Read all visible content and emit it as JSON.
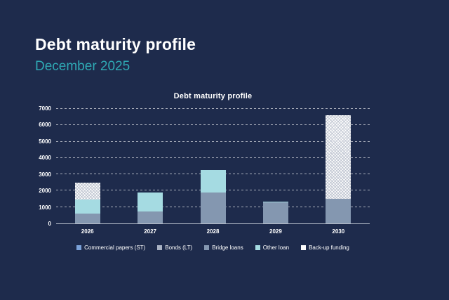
{
  "page": {
    "title": "Debt maturity profile",
    "subtitle": "December 2025"
  },
  "colors": {
    "background": "#1e2b4c",
    "title_text": "#ffffff",
    "subtitle_accent": "#2fa9b4",
    "axis_line": "#b9c0cc",
    "gridline": "rgba(255,255,255,0.62)"
  },
  "chart_data": {
    "type": "bar",
    "variant": "stacked",
    "title": "Debt maturity profile",
    "categories": [
      "2026",
      "2027",
      "2028",
      "2029",
      "2030"
    ],
    "series": [
      {
        "name": "Commercial papers (ST)",
        "color": "#7ba2d9",
        "hatch": false,
        "values": [
          0,
          0,
          0,
          0,
          0
        ]
      },
      {
        "name": "Bonds (LT)",
        "color": "#a9b2c4",
        "hatch": false,
        "values": [
          0,
          0,
          0,
          0,
          0
        ]
      },
      {
        "name": "Bridge loans",
        "color": "#8497b0",
        "hatch": false,
        "values": [
          600,
          750,
          1900,
          1300,
          1500
        ]
      },
      {
        "name": "Other loan",
        "color": "#a5dbe2",
        "hatch": false,
        "values": [
          850,
          1150,
          1350,
          50,
          0
        ]
      },
      {
        "name": "Back-up funding",
        "color": "#fdfdfd",
        "hatch": true,
        "values": [
          1050,
          0,
          0,
          0,
          5100
        ]
      }
    ],
    "totals": [
      2500,
      1900,
      3250,
      1350,
      6600
    ],
    "xlabel": "",
    "ylabel": "",
    "ylim": [
      0,
      7000
    ],
    "yticks": [
      0,
      1000,
      2000,
      3000,
      4000,
      5000,
      6000,
      7000
    ],
    "grid": "horizontal-dashed",
    "legend_position": "bottom"
  }
}
